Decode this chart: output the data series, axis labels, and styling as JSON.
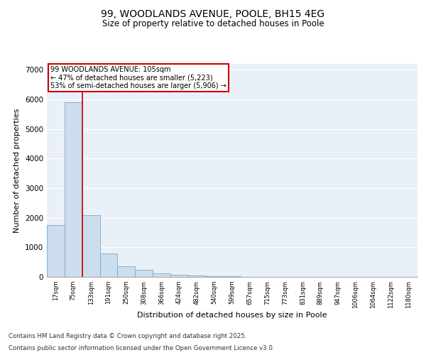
{
  "title_line1": "99, WOODLANDS AVENUE, POOLE, BH15 4EG",
  "title_line2": "Size of property relative to detached houses in Poole",
  "xlabel": "Distribution of detached houses by size in Poole",
  "ylabel": "Number of detached properties",
  "bar_color": "#ccdded",
  "bar_edge_color": "#7aaac8",
  "bg_color": "#eaf0f7",
  "grid_color": "#ffffff",
  "annotation_text": "99 WOODLANDS AVENUE: 105sqm\n← 47% of detached houses are smaller (5,223)\n53% of semi-detached houses are larger (5,906) →",
  "vline_color": "#cc0000",
  "vline_pos": 1.5,
  "categories": [
    "17sqm",
    "75sqm",
    "133sqm",
    "191sqm",
    "250sqm",
    "308sqm",
    "366sqm",
    "424sqm",
    "482sqm",
    "540sqm",
    "599sqm",
    "657sqm",
    "715sqm",
    "773sqm",
    "831sqm",
    "889sqm",
    "947sqm",
    "1006sqm",
    "1064sqm",
    "1122sqm",
    "1180sqm"
  ],
  "values": [
    1750,
    5900,
    2100,
    800,
    350,
    230,
    130,
    80,
    50,
    30,
    15,
    8,
    4,
    2,
    1,
    1,
    0,
    0,
    0,
    0,
    0
  ],
  "ylim": [
    0,
    7200
  ],
  "yticks": [
    0,
    1000,
    2000,
    3000,
    4000,
    5000,
    6000,
    7000
  ],
  "footnote_line1": "Contains HM Land Registry data © Crown copyright and database right 2025.",
  "footnote_line2": "Contains public sector information licensed under the Open Government Licence v3.0."
}
